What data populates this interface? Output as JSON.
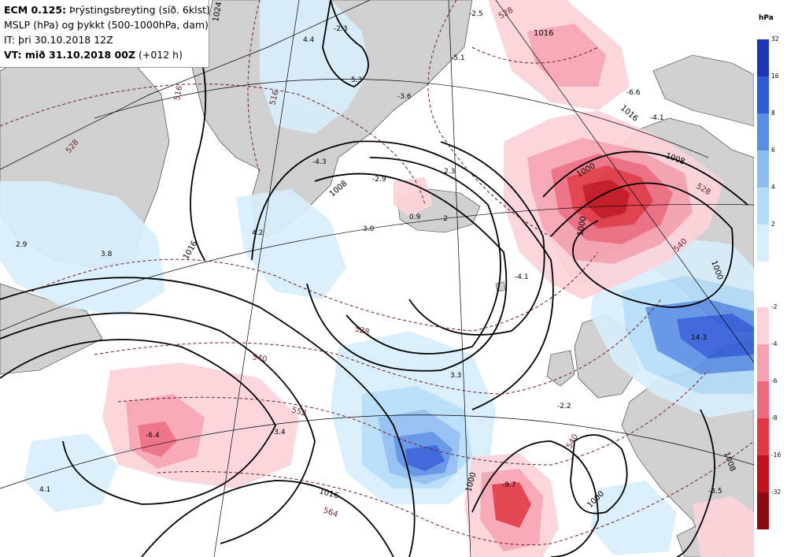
{
  "header": {
    "model": "ECM 0.125:",
    "title_rest": "Þrýstingsbreyting (síð. 6klst)",
    "line2": "MSLP (hPa) og þykkt (500-1000hPa, dam)",
    "line3": "IT: þri 30.10.2018 12Z",
    "line4_bold": "VT: mið 31.10.2018 00Z",
    "line4_rest": "(+012 h)"
  },
  "legend": {
    "unit": "hPa",
    "positive": [
      {
        "label": "32",
        "color": "#1d33b8"
      },
      {
        "label": "16",
        "color": "#2f5ad8"
      },
      {
        "label": "8",
        "color": "#5a8ee6"
      },
      {
        "label": "6",
        "color": "#8cbcf0"
      },
      {
        "label": "4",
        "color": "#b4dcf8"
      },
      {
        "label": "2",
        "color": "#d7eefc"
      }
    ],
    "negative": [
      {
        "label": "-2",
        "color": "#fbd3da"
      },
      {
        "label": "-4",
        "color": "#f6a2b0"
      },
      {
        "label": "-6",
        "color": "#ee6b7e"
      },
      {
        "label": "-8",
        "color": "#e23846"
      },
      {
        "label": "-16",
        "color": "#c2121e"
      },
      {
        "label": "-32",
        "color": "#8c0a12"
      }
    ]
  },
  "colors": {
    "land": "#d0d0d0",
    "sea": "#ffffff",
    "isobar": "#000000",
    "thickness": "#6e1e28"
  },
  "tendency_labels": [
    "4.4",
    "-2.3",
    "5.3",
    "-5.1",
    "-4.3",
    "4.2",
    "2.9",
    "3.8",
    "2.3",
    "-2.9",
    "3.0",
    "-2",
    "-4.1",
    "-6.6",
    "-4.1",
    "14.3",
    "3.3",
    "-2.2",
    "-6.4",
    "-3.4",
    "4.1",
    "-9.7",
    "-3.5",
    "-2.5",
    "0.9",
    "-3.6"
  ],
  "isobar_labels": [
    "1016",
    "1016",
    "1008",
    "1000",
    "1008",
    "1000",
    "1000",
    "1016",
    "1000",
    "1008",
    "1016",
    "1000",
    "1024"
  ],
  "thickness_labels": [
    "516",
    "528",
    "528",
    "540",
    "552",
    "564",
    "540",
    "528",
    "528",
    "516",
    "540"
  ]
}
